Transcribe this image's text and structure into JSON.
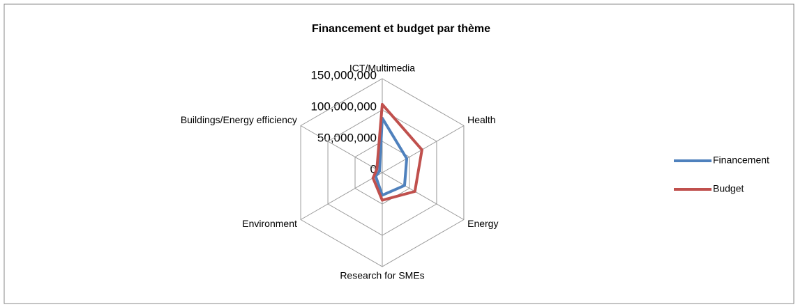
{
  "chart_data": {
    "type": "radar",
    "title": "Financement et budget par thème",
    "categories": [
      "ICT/Multimedia",
      "Health",
      "Energy",
      "Research for SMEs",
      "Environment",
      "Buildings/Energy efficiency"
    ],
    "series": [
      {
        "name": "Financement",
        "color": "#4f81bd",
        "values": [
          87000000,
          45000000,
          41000000,
          36000000,
          12000000,
          5000000
        ]
      },
      {
        "name": "Budget",
        "color": "#c0504d",
        "values": [
          109000000,
          73000000,
          60000000,
          44000000,
          17000000,
          10000000
        ]
      }
    ],
    "ylim": [
      0,
      150000000
    ],
    "yticks": [
      {
        "value": 0,
        "label": "0"
      },
      {
        "value": 50000000,
        "label": "50,000,000"
      },
      {
        "value": 100000000,
        "label": "100,000,000"
      },
      {
        "value": 150000000,
        "label": "150,000,000"
      }
    ],
    "legend": "right"
  }
}
